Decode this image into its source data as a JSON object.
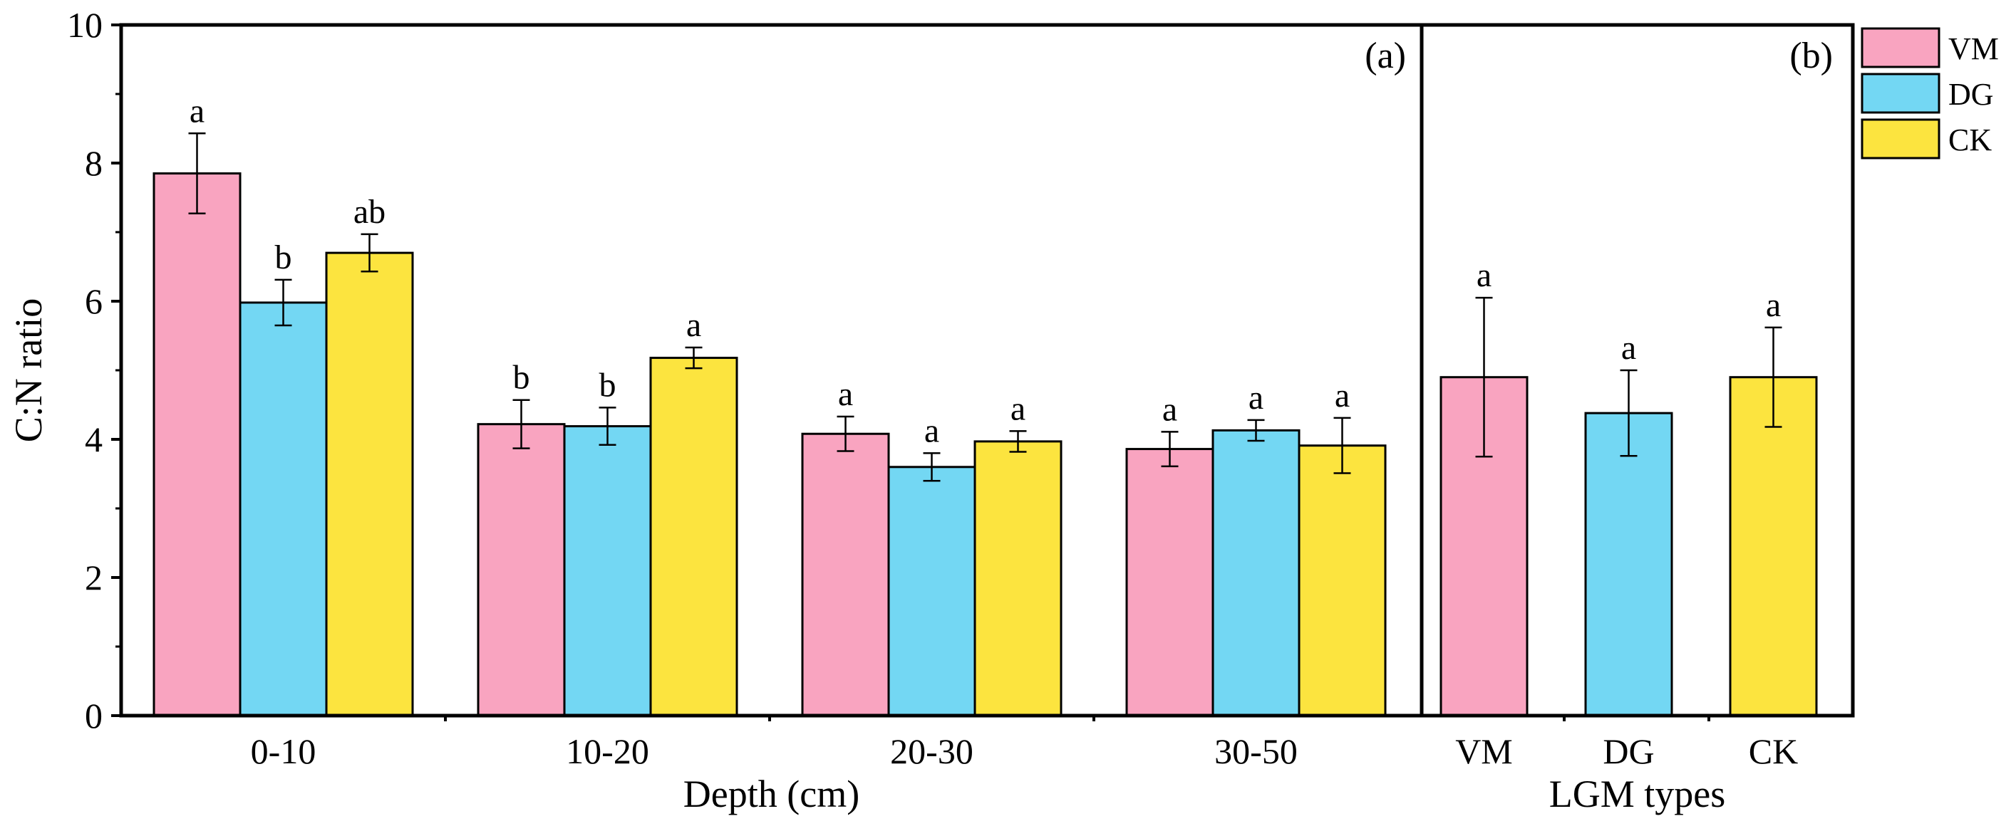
{
  "chart_data": [
    {
      "panel": "(a)",
      "type": "bar",
      "xlabel": "Depth (cm)",
      "ylabel": "C:N ratio",
      "ylim": [
        0,
        10
      ],
      "yticks": [
        "0",
        "2",
        "4",
        "6",
        "8",
        "10"
      ],
      "categories": [
        "0-10",
        "10-20",
        "20-30",
        "30-50"
      ],
      "series": [
        {
          "name": "VM",
          "values": [
            7.85,
            4.22,
            4.08,
            3.86
          ],
          "errors": [
            0.58,
            0.35,
            0.25,
            0.25
          ],
          "letters": [
            "a",
            "b",
            "a",
            "a"
          ]
        },
        {
          "name": "DG",
          "values": [
            5.98,
            4.19,
            3.6,
            4.13
          ],
          "errors": [
            0.33,
            0.27,
            0.2,
            0.15
          ],
          "letters": [
            "b",
            "b",
            "a",
            "a"
          ]
        },
        {
          "name": "CK",
          "values": [
            6.7,
            5.18,
            3.97,
            3.91
          ],
          "errors": [
            0.27,
            0.15,
            0.15,
            0.4
          ],
          "letters": [
            "ab",
            "a",
            "a",
            "a"
          ]
        }
      ]
    },
    {
      "panel": "(b)",
      "type": "bar",
      "xlabel": "LGM types",
      "ylim": [
        0,
        10
      ],
      "categories": [
        "VM",
        "DG",
        "CK"
      ],
      "values": [
        4.9,
        4.38,
        4.9
      ],
      "errors": [
        1.15,
        0.62,
        0.72
      ],
      "letters": [
        "a",
        "a",
        "a"
      ],
      "colors": [
        "#F9A4C0",
        "#73D7F3",
        "#FCE43F"
      ]
    }
  ],
  "legend": {
    "position": "top-right",
    "items": [
      {
        "name": "VM",
        "color": "#F9A4C0"
      },
      {
        "name": "DG",
        "color": "#73D7F3"
      },
      {
        "name": "CK",
        "color": "#FCE43F"
      }
    ]
  },
  "colors": {
    "VM": "#F9A4C0",
    "DG": "#73D7F3",
    "CK": "#FCE43F"
  }
}
